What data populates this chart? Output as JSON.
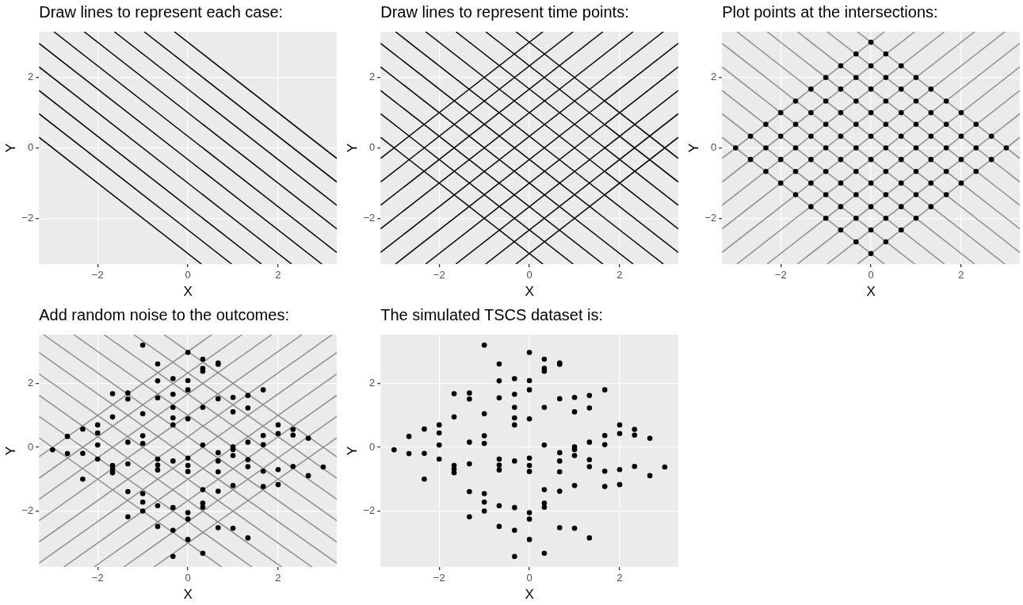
{
  "chart_data": [
    {
      "type": "line",
      "title": "Draw lines to represent each case:",
      "xlabel": "X",
      "ylabel": "Y",
      "xlim": [
        -3.3,
        3.3
      ],
      "ylim": [
        -3.3,
        3.3
      ],
      "xticks": [
        -2,
        0,
        2
      ],
      "yticks": [
        -2,
        0,
        2
      ],
      "grid": true,
      "series": [
        {
          "type": "line",
          "marker": "none",
          "color": "#000000",
          "x": [
            -3.3,
            0.3
          ],
          "values": [
            0.3,
            -3.3
          ]
        },
        {
          "type": "line",
          "marker": "none",
          "color": "#000000",
          "x": [
            -3.3,
            0.97
          ],
          "values": [
            0.97,
            -3.3
          ]
        },
        {
          "type": "line",
          "marker": "none",
          "color": "#000000",
          "x": [
            -3.3,
            1.63
          ],
          "values": [
            1.63,
            -3.3
          ]
        },
        {
          "type": "line",
          "marker": "none",
          "color": "#000000",
          "x": [
            -3.3,
            2.3
          ],
          "values": [
            2.3,
            -3.3
          ]
        },
        {
          "type": "line",
          "marker": "none",
          "color": "#000000",
          "x": [
            -3.3,
            2.97
          ],
          "values": [
            2.97,
            -3.3
          ]
        },
        {
          "type": "line",
          "marker": "none",
          "color": "#000000",
          "x": [
            -2.97,
            3.3
          ],
          "values": [
            3.3,
            -2.97
          ]
        },
        {
          "type": "line",
          "marker": "none",
          "color": "#000000",
          "x": [
            -2.3,
            3.3
          ],
          "values": [
            3.3,
            -2.3
          ]
        },
        {
          "type": "line",
          "marker": "none",
          "color": "#000000",
          "x": [
            -1.63,
            3.3
          ],
          "values": [
            3.3,
            -1.63
          ]
        },
        {
          "type": "line",
          "marker": "none",
          "color": "#000000",
          "x": [
            -0.97,
            3.3
          ],
          "values": [
            3.3,
            -0.97
          ]
        },
        {
          "type": "line",
          "marker": "none",
          "color": "#000000",
          "x": [
            -0.3,
            3.3
          ],
          "values": [
            3.3,
            -0.3
          ]
        }
      ]
    },
    {
      "type": "line",
      "title": "Draw lines to represent time points:",
      "xlabel": "X",
      "ylabel": "Y",
      "xlim": [
        -3.3,
        3.3
      ],
      "ylim": [
        -3.3,
        3.3
      ],
      "xticks": [
        -2,
        0,
        2
      ],
      "yticks": [
        -2,
        0,
        2
      ],
      "grid": true,
      "series": [
        {
          "type": "line",
          "marker": "none",
          "color": "#000000",
          "x": [
            -3.3,
            0.3
          ],
          "values": [
            0.3,
            -3.3
          ]
        },
        {
          "type": "line",
          "marker": "none",
          "color": "#000000",
          "x": [
            -3.3,
            0.97
          ],
          "values": [
            0.97,
            -3.3
          ]
        },
        {
          "type": "line",
          "marker": "none",
          "color": "#000000",
          "x": [
            -3.3,
            1.63
          ],
          "values": [
            1.63,
            -3.3
          ]
        },
        {
          "type": "line",
          "marker": "none",
          "color": "#000000",
          "x": [
            -3.3,
            2.3
          ],
          "values": [
            2.3,
            -3.3
          ]
        },
        {
          "type": "line",
          "marker": "none",
          "color": "#000000",
          "x": [
            -3.3,
            2.97
          ],
          "values": [
            2.97,
            -3.3
          ]
        },
        {
          "type": "line",
          "marker": "none",
          "color": "#000000",
          "x": [
            -2.97,
            3.3
          ],
          "values": [
            3.3,
            -2.97
          ]
        },
        {
          "type": "line",
          "marker": "none",
          "color": "#000000",
          "x": [
            -2.3,
            3.3
          ],
          "values": [
            3.3,
            -2.3
          ]
        },
        {
          "type": "line",
          "marker": "none",
          "color": "#000000",
          "x": [
            -1.63,
            3.3
          ],
          "values": [
            3.3,
            -1.63
          ]
        },
        {
          "type": "line",
          "marker": "none",
          "color": "#000000",
          "x": [
            -0.97,
            3.3
          ],
          "values": [
            3.3,
            -0.97
          ]
        },
        {
          "type": "line",
          "marker": "none",
          "color": "#000000",
          "x": [
            -0.3,
            3.3
          ],
          "values": [
            3.3,
            -0.3
          ]
        },
        {
          "type": "line",
          "marker": "none",
          "color": "#000000",
          "x": [
            -0.3,
            3.3
          ],
          "values": [
            -3.3,
            0.3
          ]
        },
        {
          "type": "line",
          "marker": "none",
          "color": "#000000",
          "x": [
            -0.97,
            3.3
          ],
          "values": [
            -3.3,
            0.97
          ]
        },
        {
          "type": "line",
          "marker": "none",
          "color": "#000000",
          "x": [
            -1.63,
            3.3
          ],
          "values": [
            -3.3,
            1.63
          ]
        },
        {
          "type": "line",
          "marker": "none",
          "color": "#000000",
          "x": [
            -2.3,
            3.3
          ],
          "values": [
            -3.3,
            2.3
          ]
        },
        {
          "type": "line",
          "marker": "none",
          "color": "#000000",
          "x": [
            -2.97,
            3.3
          ],
          "values": [
            -3.3,
            2.97
          ]
        },
        {
          "type": "line",
          "marker": "none",
          "color": "#000000",
          "x": [
            -3.3,
            2.97
          ],
          "values": [
            -2.97,
            3.3
          ]
        },
        {
          "type": "line",
          "marker": "none",
          "color": "#000000",
          "x": [
            -3.3,
            2.3
          ],
          "values": [
            -2.3,
            3.3
          ]
        },
        {
          "type": "line",
          "marker": "none",
          "color": "#000000",
          "x": [
            -3.3,
            1.63
          ],
          "values": [
            -1.63,
            3.3
          ]
        },
        {
          "type": "line",
          "marker": "none",
          "color": "#000000",
          "x": [
            -3.3,
            0.97
          ],
          "values": [
            -0.97,
            3.3
          ]
        },
        {
          "type": "line",
          "marker": "none",
          "color": "#000000",
          "x": [
            -3.3,
            0.3
          ],
          "values": [
            -0.3,
            3.3
          ]
        }
      ]
    },
    {
      "type": "line",
      "title": "Plot points at the intersections:",
      "xlabel": "X",
      "ylabel": "Y",
      "xlim": [
        -3.3,
        3.3
      ],
      "ylim": [
        -3.3,
        3.3
      ],
      "xticks": [
        -2,
        0,
        2
      ],
      "yticks": [
        -2,
        0,
        2
      ],
      "grid": true,
      "series": [
        {
          "type": "line",
          "marker": "none",
          "color": "#8c8c8c",
          "x": [
            -3.3,
            0.3
          ],
          "values": [
            0.3,
            -3.3
          ]
        },
        {
          "type": "line",
          "marker": "none",
          "color": "#8c8c8c",
          "x": [
            -3.3,
            0.97
          ],
          "values": [
            0.97,
            -3.3
          ]
        },
        {
          "type": "line",
          "marker": "none",
          "color": "#8c8c8c",
          "x": [
            -3.3,
            1.63
          ],
          "values": [
            1.63,
            -3.3
          ]
        },
        {
          "type": "line",
          "marker": "none",
          "color": "#8c8c8c",
          "x": [
            -3.3,
            2.3
          ],
          "values": [
            2.3,
            -3.3
          ]
        },
        {
          "type": "line",
          "marker": "none",
          "color": "#8c8c8c",
          "x": [
            -3.3,
            2.97
          ],
          "values": [
            2.97,
            -3.3
          ]
        },
        {
          "type": "line",
          "marker": "none",
          "color": "#8c8c8c",
          "x": [
            -2.97,
            3.3
          ],
          "values": [
            3.3,
            -2.97
          ]
        },
        {
          "type": "line",
          "marker": "none",
          "color": "#8c8c8c",
          "x": [
            -2.3,
            3.3
          ],
          "values": [
            3.3,
            -2.3
          ]
        },
        {
          "type": "line",
          "marker": "none",
          "color": "#8c8c8c",
          "x": [
            -1.63,
            3.3
          ],
          "values": [
            3.3,
            -1.63
          ]
        },
        {
          "type": "line",
          "marker": "none",
          "color": "#8c8c8c",
          "x": [
            -0.97,
            3.3
          ],
          "values": [
            3.3,
            -0.97
          ]
        },
        {
          "type": "line",
          "marker": "none",
          "color": "#8c8c8c",
          "x": [
            -0.3,
            3.3
          ],
          "values": [
            3.3,
            -0.3
          ]
        },
        {
          "type": "line",
          "marker": "none",
          "color": "#8c8c8c",
          "x": [
            -0.3,
            3.3
          ],
          "values": [
            -3.3,
            0.3
          ]
        },
        {
          "type": "line",
          "marker": "none",
          "color": "#8c8c8c",
          "x": [
            -0.97,
            3.3
          ],
          "values": [
            -3.3,
            0.97
          ]
        },
        {
          "type": "line",
          "marker": "none",
          "color": "#8c8c8c",
          "x": [
            -1.63,
            3.3
          ],
          "values": [
            -3.3,
            1.63
          ]
        },
        {
          "type": "line",
          "marker": "none",
          "color": "#8c8c8c",
          "x": [
            -2.3,
            3.3
          ],
          "values": [
            -3.3,
            2.3
          ]
        },
        {
          "type": "line",
          "marker": "none",
          "color": "#8c8c8c",
          "x": [
            -2.97,
            3.3
          ],
          "values": [
            -3.3,
            2.97
          ]
        },
        {
          "type": "line",
          "marker": "none",
          "color": "#8c8c8c",
          "x": [
            -3.3,
            2.97
          ],
          "values": [
            -2.97,
            3.3
          ]
        },
        {
          "type": "line",
          "marker": "none",
          "color": "#8c8c8c",
          "x": [
            -3.3,
            2.3
          ],
          "values": [
            -2.3,
            3.3
          ]
        },
        {
          "type": "line",
          "marker": "none",
          "color": "#8c8c8c",
          "x": [
            -3.3,
            1.63
          ],
          "values": [
            -1.63,
            3.3
          ]
        },
        {
          "type": "line",
          "marker": "none",
          "color": "#8c8c8c",
          "x": [
            -3.3,
            0.97
          ],
          "values": [
            -0.97,
            3.3
          ]
        },
        {
          "type": "line",
          "marker": "none",
          "color": "#8c8c8c",
          "x": [
            -3.3,
            0.3
          ],
          "values": [
            -0.3,
            3.3
          ]
        },
        {
          "type": "scatter",
          "marker": "circle",
          "color": "#000000",
          "x": [
            -3,
            -2.67,
            -2.67,
            -2.33,
            -2.33,
            -2.33,
            -2,
            -2,
            -2,
            -2,
            -1.67,
            -1.67,
            -1.67,
            -1.67,
            -1.67,
            -1.33,
            -1.33,
            -1.33,
            -1.33,
            -1.33,
            -1.33,
            -1,
            -1,
            -1,
            -1,
            -1,
            -1,
            -1,
            -0.67,
            -0.67,
            -0.67,
            -0.67,
            -0.67,
            -0.67,
            -0.67,
            -0.67,
            -0.33,
            -0.33,
            -0.33,
            -0.33,
            -0.33,
            -0.33,
            -0.33,
            -0.33,
            -0.33,
            0,
            0,
            0,
            0,
            0,
            0,
            0,
            0,
            0,
            0,
            0.33,
            0.33,
            0.33,
            0.33,
            0.33,
            0.33,
            0.33,
            0.33,
            0.33,
            0.67,
            0.67,
            0.67,
            0.67,
            0.67,
            0.67,
            0.67,
            0.67,
            1,
            1,
            1,
            1,
            1,
            1,
            1,
            1.33,
            1.33,
            1.33,
            1.33,
            1.33,
            1.33,
            1.67,
            1.67,
            1.67,
            1.67,
            1.67,
            2,
            2,
            2,
            2,
            2.33,
            2.33,
            2.33,
            2.67,
            2.67,
            3
          ],
          "values": [
            0,
            -0.33,
            0.33,
            -0.67,
            0,
            0.67,
            -1,
            -0.33,
            0.33,
            1,
            -1.33,
            -0.67,
            0,
            0.67,
            1.33,
            -1.67,
            -1,
            -0.33,
            0.33,
            1,
            1.67,
            -2,
            -1.33,
            -0.67,
            0,
            0.67,
            1.33,
            2,
            -2.33,
            -1.67,
            -1,
            -0.33,
            0.33,
            1,
            1.67,
            2.33,
            -2.67,
            -2,
            -1.33,
            -0.67,
            0,
            0.67,
            1.33,
            2,
            2.67,
            -3,
            -2.33,
            -1.67,
            -1,
            -0.33,
            0.33,
            1,
            1.67,
            2.33,
            3,
            -2.67,
            -2,
            -1.33,
            -0.67,
            0,
            0.67,
            1.33,
            2,
            2.67,
            -2.33,
            -1.67,
            -1,
            -0.33,
            0.33,
            1,
            1.67,
            2.33,
            -2,
            -1.33,
            -0.67,
            0,
            0.67,
            1.33,
            2,
            -1.67,
            -1,
            -0.33,
            0.33,
            1,
            1.67,
            -1.33,
            -0.67,
            0,
            0.67,
            1.33,
            -1,
            -0.33,
            0.33,
            1,
            -0.67,
            0,
            0.67,
            -0.33,
            0.33,
            0
          ]
        }
      ]
    },
    {
      "type": "line",
      "title": "Add random noise to the outcomes:",
      "xlabel": "X",
      "ylabel": "Y",
      "xlim": [
        -3.3,
        3.3
      ],
      "ylim": [
        -3.75,
        3.53
      ],
      "xticks": [
        -2,
        0,
        2
      ],
      "yticks": [
        -2,
        0,
        2
      ],
      "grid": true,
      "series": [
        {
          "type": "line",
          "marker": "none",
          "color": "#8c8c8c",
          "x": [
            -3.3,
            0.75
          ],
          "values": [
            0.3,
            -3.75
          ]
        },
        {
          "type": "line",
          "marker": "none",
          "color": "#8c8c8c",
          "x": [
            -3.3,
            1.42
          ],
          "values": [
            0.97,
            -3.75
          ]
        },
        {
          "type": "line",
          "marker": "none",
          "color": "#8c8c8c",
          "x": [
            -3.3,
            2.08
          ],
          "values": [
            1.63,
            -3.75
          ]
        },
        {
          "type": "line",
          "marker": "none",
          "color": "#8c8c8c",
          "x": [
            -3.3,
            2.75
          ],
          "values": [
            2.3,
            -3.75
          ]
        },
        {
          "type": "line",
          "marker": "none",
          "color": "#8c8c8c",
          "x": [
            -3.3,
            3.3
          ],
          "values": [
            2.97,
            -3.63
          ]
        },
        {
          "type": "line",
          "marker": "none",
          "color": "#8c8c8c",
          "x": [
            -3.2,
            3.3
          ],
          "values": [
            3.53,
            -2.97
          ]
        },
        {
          "type": "line",
          "marker": "none",
          "color": "#8c8c8c",
          "x": [
            -2.53,
            3.3
          ],
          "values": [
            3.53,
            -2.3
          ]
        },
        {
          "type": "line",
          "marker": "none",
          "color": "#8c8c8c",
          "x": [
            -1.86,
            3.3
          ],
          "values": [
            3.53,
            -1.63
          ]
        },
        {
          "type": "line",
          "marker": "none",
          "color": "#8c8c8c",
          "x": [
            -1.2,
            3.3
          ],
          "values": [
            3.53,
            -0.97
          ]
        },
        {
          "type": "line",
          "marker": "none",
          "color": "#8c8c8c",
          "x": [
            -0.53,
            3.3
          ],
          "values": [
            3.53,
            -0.3
          ]
        },
        {
          "type": "line",
          "marker": "none",
          "color": "#8c8c8c",
          "x": [
            -0.75,
            3.3
          ],
          "values": [
            -3.75,
            0.3
          ]
        },
        {
          "type": "line",
          "marker": "none",
          "color": "#8c8c8c",
          "x": [
            -1.42,
            3.3
          ],
          "values": [
            -3.75,
            0.97
          ]
        },
        {
          "type": "line",
          "marker": "none",
          "color": "#8c8c8c",
          "x": [
            -2.08,
            3.3
          ],
          "values": [
            -3.75,
            1.63
          ]
        },
        {
          "type": "line",
          "marker": "none",
          "color": "#8c8c8c",
          "x": [
            -2.75,
            3.3
          ],
          "values": [
            -3.75,
            2.3
          ]
        },
        {
          "type": "line",
          "marker": "none",
          "color": "#8c8c8c",
          "x": [
            -3.3,
            3.3
          ],
          "values": [
            -3.63,
            2.97
          ]
        },
        {
          "type": "line",
          "marker": "none",
          "color": "#8c8c8c",
          "x": [
            -3.3,
            3.2
          ],
          "values": [
            -2.97,
            3.53
          ]
        },
        {
          "type": "line",
          "marker": "none",
          "color": "#8c8c8c",
          "x": [
            -3.3,
            2.53
          ],
          "values": [
            -2.3,
            3.53
          ]
        },
        {
          "type": "line",
          "marker": "none",
          "color": "#8c8c8c",
          "x": [
            -3.3,
            1.86
          ],
          "values": [
            -1.63,
            3.53
          ]
        },
        {
          "type": "line",
          "marker": "none",
          "color": "#8c8c8c",
          "x": [
            -3.3,
            1.2
          ],
          "values": [
            -0.97,
            3.53
          ]
        },
        {
          "type": "line",
          "marker": "none",
          "color": "#8c8c8c",
          "x": [
            -3.3,
            0.53
          ],
          "values": [
            -0.3,
            3.53
          ]
        },
        {
          "type": "scatter",
          "marker": "circle",
          "color": "#000000",
          "x": [
            -3,
            -2.67,
            -2.67,
            -2.33,
            -2.33,
            -2.33,
            -2,
            -2,
            -2,
            -2,
            -1.67,
            -1.67,
            -1.67,
            -1.67,
            -1.67,
            -1.33,
            -1.33,
            -1.33,
            -1.33,
            -1.33,
            -1.33,
            -1,
            -1,
            -1,
            -1,
            -1,
            -1,
            -1,
            -0.67,
            -0.67,
            -0.67,
            -0.67,
            -0.67,
            -0.67,
            -0.67,
            -0.67,
            -0.33,
            -0.33,
            -0.33,
            -0.33,
            -0.33,
            -0.33,
            -0.33,
            -0.33,
            -0.33,
            0,
            0,
            0,
            0,
            0,
            0,
            0,
            0,
            0,
            0,
            0.33,
            0.33,
            0.33,
            0.33,
            0.33,
            0.33,
            0.33,
            0.33,
            0.33,
            0.67,
            0.67,
            0.67,
            0.67,
            0.67,
            0.67,
            0.67,
            0.67,
            1,
            1,
            1,
            1,
            1,
            1,
            1,
            1.33,
            1.33,
            1.33,
            1.33,
            1.33,
            1.33,
            1.67,
            1.67,
            1.67,
            1.67,
            1.67,
            2,
            2,
            2,
            2,
            2.33,
            2.33,
            2.33,
            2.67,
            2.67,
            3
          ],
          "values": [
            -0.08,
            0.34,
            -0.2,
            0.57,
            -0.19,
            -1.0,
            0.7,
            0.45,
            0.07,
            -0.37,
            1.68,
            0.95,
            -0.57,
            -0.69,
            -0.8,
            1.7,
            1.51,
            0.16,
            -0.52,
            -1.39,
            -2.18,
            3.2,
            1.05,
            0.36,
            0.12,
            -1.45,
            -1.72,
            -2.0,
            2.61,
            2.08,
            1.55,
            -0.37,
            -0.56,
            -0.71,
            -1.83,
            -2.48,
            2.15,
            1.66,
            1.25,
            0.92,
            0.7,
            -0.43,
            -1.89,
            -2.6,
            -3.42,
            2.97,
            2.09,
            1.8,
            0.89,
            -0.34,
            -0.57,
            -0.76,
            -2.05,
            -2.25,
            -2.89,
            2.76,
            2.47,
            2.38,
            1.25,
            0.07,
            -1.33,
            -1.75,
            -1.88,
            -3.32,
            2.64,
            2.6,
            1.52,
            -0.17,
            -0.43,
            -0.77,
            -1.38,
            -2.52,
            1.56,
            1.11,
            0.01,
            -0.07,
            -0.26,
            -1.2,
            -2.54,
            1.62,
            1.23,
            0.16,
            -0.39,
            -0.61,
            -2.84,
            1.8,
            0.37,
            0.08,
            -0.75,
            -1.23,
            0.7,
            0.43,
            -0.7,
            -1.17,
            0.56,
            0.38,
            -0.6,
            0.28,
            -0.89,
            -0.62
          ]
        }
      ]
    },
    {
      "type": "scatter",
      "title": "The simulated TSCS dataset is:",
      "xlabel": "X",
      "ylabel": "Y",
      "xlim": [
        -3.3,
        3.3
      ],
      "ylim": [
        -3.75,
        3.53
      ],
      "xticks": [
        -2,
        0,
        2
      ],
      "yticks": [
        -2,
        0,
        2
      ],
      "grid": true,
      "marker": "circle",
      "series": [
        {
          "color": "#000000",
          "x": [
            -3,
            -2.67,
            -2.67,
            -2.33,
            -2.33,
            -2.33,
            -2,
            -2,
            -2,
            -2,
            -1.67,
            -1.67,
            -1.67,
            -1.67,
            -1.67,
            -1.33,
            -1.33,
            -1.33,
            -1.33,
            -1.33,
            -1.33,
            -1,
            -1,
            -1,
            -1,
            -1,
            -1,
            -1,
            -0.67,
            -0.67,
            -0.67,
            -0.67,
            -0.67,
            -0.67,
            -0.67,
            -0.67,
            -0.33,
            -0.33,
            -0.33,
            -0.33,
            -0.33,
            -0.33,
            -0.33,
            -0.33,
            -0.33,
            0,
            0,
            0,
            0,
            0,
            0,
            0,
            0,
            0,
            0,
            0.33,
            0.33,
            0.33,
            0.33,
            0.33,
            0.33,
            0.33,
            0.33,
            0.33,
            0.67,
            0.67,
            0.67,
            0.67,
            0.67,
            0.67,
            0.67,
            0.67,
            1,
            1,
            1,
            1,
            1,
            1,
            1,
            1.33,
            1.33,
            1.33,
            1.33,
            1.33,
            1.33,
            1.67,
            1.67,
            1.67,
            1.67,
            1.67,
            2,
            2,
            2,
            2,
            2.33,
            2.33,
            2.33,
            2.67,
            2.67,
            3
          ],
          "values": [
            -0.08,
            0.34,
            -0.2,
            0.57,
            -0.19,
            -1.0,
            0.7,
            0.45,
            0.07,
            -0.37,
            1.68,
            0.95,
            -0.57,
            -0.69,
            -0.8,
            1.7,
            1.51,
            0.16,
            -0.52,
            -1.39,
            -2.18,
            3.2,
            1.05,
            0.36,
            0.12,
            -1.45,
            -1.72,
            -2.0,
            2.61,
            2.08,
            1.55,
            -0.37,
            -0.56,
            -0.71,
            -1.83,
            -2.48,
            2.15,
            1.66,
            1.25,
            0.92,
            0.7,
            -0.43,
            -1.89,
            -2.6,
            -3.42,
            2.97,
            2.09,
            1.8,
            0.89,
            -0.34,
            -0.57,
            -0.76,
            -2.05,
            -2.25,
            -2.89,
            2.76,
            2.47,
            2.38,
            1.25,
            0.07,
            -1.33,
            -1.75,
            -1.88,
            -3.32,
            2.64,
            2.6,
            1.52,
            -0.17,
            -0.43,
            -0.77,
            -1.38,
            -2.52,
            1.56,
            1.11,
            0.01,
            -0.07,
            -0.26,
            -1.2,
            -2.54,
            1.62,
            1.23,
            0.16,
            -0.39,
            -0.61,
            -2.84,
            1.8,
            0.37,
            0.08,
            -0.75,
            -1.23,
            0.7,
            0.43,
            -0.7,
            -1.17,
            0.56,
            0.38,
            -0.6,
            0.28,
            -0.89,
            -0.62
          ]
        }
      ]
    }
  ]
}
